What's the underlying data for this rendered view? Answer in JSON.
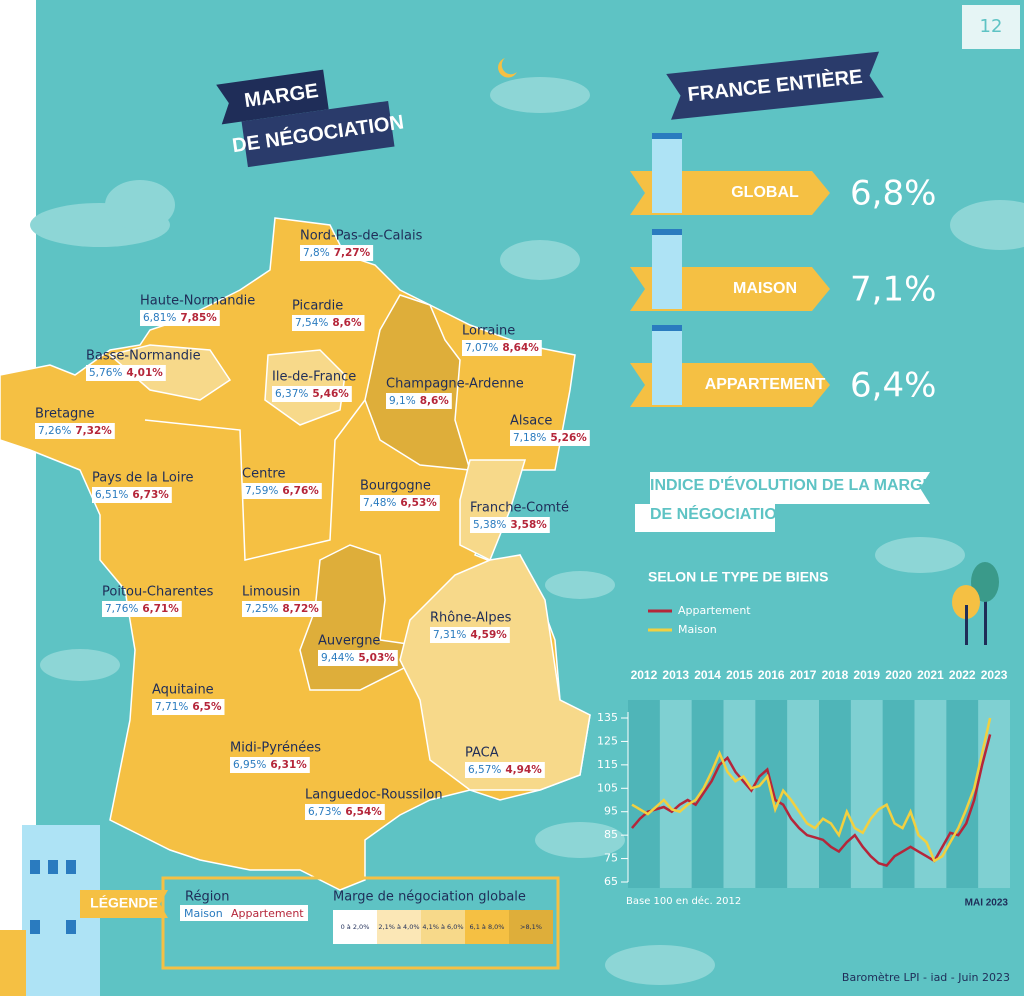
{
  "page_number": "12",
  "map_title": [
    "MARGE",
    "DE NÉGOCIATION"
  ],
  "regions": [
    {
      "name": "Nord-Pas-de-Calais",
      "maison": "7,8%",
      "appartement": "7,27%"
    },
    {
      "name": "Haute-Normandie",
      "maison": "6,81%",
      "appartement": "7,85%"
    },
    {
      "name": "Picardie",
      "maison": "7,54%",
      "appartement": "8,6%"
    },
    {
      "name": "Lorraine",
      "maison": "7,07%",
      "appartement": "8,64%"
    },
    {
      "name": "Basse-Normandie",
      "maison": "5,76%",
      "appartement": "4,01%"
    },
    {
      "name": "Ile-de-France",
      "maison": "6,37%",
      "appartement": "5,46%"
    },
    {
      "name": "Champagne-Ardenne",
      "maison": "9,1%",
      "appartement": "8,6%"
    },
    {
      "name": "Bretagne",
      "maison": "7,26%",
      "appartement": "7,32%"
    },
    {
      "name": "Alsace",
      "maison": "7,18%",
      "appartement": "5,26%"
    },
    {
      "name": "Pays de la Loire",
      "maison": "6,51%",
      "appartement": "6,73%"
    },
    {
      "name": "Centre",
      "maison": "7,59%",
      "appartement": "6,76%"
    },
    {
      "name": "Bourgogne",
      "maison": "7,48%",
      "appartement": "6,53%"
    },
    {
      "name": "Franche-Comté",
      "maison": "5,38%",
      "appartement": "3,58%"
    },
    {
      "name": "Poitou-Charentes",
      "maison": "7,76%",
      "appartement": "6,71%"
    },
    {
      "name": "Limousin",
      "maison": "7,25%",
      "appartement": "8,72%"
    },
    {
      "name": "Rhône-Alpes",
      "maison": "7,31%",
      "appartement": "4,59%"
    },
    {
      "name": "Auvergne",
      "maison": "9,44%",
      "appartement": "5,03%"
    },
    {
      "name": "Aquitaine",
      "maison": "7,71%",
      "appartement": "6,5%"
    },
    {
      "name": "Midi-Pyrénées",
      "maison": "6,95%",
      "appartement": "6,31%"
    },
    {
      "name": "PACA",
      "maison": "6,57%",
      "appartement": "4,94%"
    },
    {
      "name": "Languedoc-Roussilon",
      "maison": "6,73%",
      "appartement": "6,54%"
    }
  ],
  "legend": {
    "title": "LÉGENDE",
    "region": "Région",
    "maison": "Maison",
    "appartement": "Appartement",
    "scale_title": "Marge de négociation globale",
    "bins": [
      "0 à 2,0%",
      "2,1% à 4,0%",
      "4,1% à 6,0%",
      "6,1 à 8,0%",
      ">8,1%"
    ]
  },
  "france": {
    "title": "FRANCE ENTIÈRE",
    "rows": [
      {
        "label": "GLOBAL",
        "value": "6,8%"
      },
      {
        "label": "MAISON",
        "value": "7,1%"
      },
      {
        "label": "APPARTEMENT",
        "value": "6,4%"
      }
    ]
  },
  "chart_data": {
    "type": "line",
    "title": [
      "INDICE D'ÉVOLUTION DE LA MARGE",
      "DE NÉGOCIATION"
    ],
    "subtitle": "SELON LE TYPE DE BIENS",
    "categories": [
      "2012",
      null,
      null,
      null,
      "2013",
      null,
      null,
      null,
      "2014",
      null,
      null,
      null,
      "2015",
      null,
      null,
      null,
      "2016",
      null,
      null,
      null,
      "2017",
      null,
      null,
      null,
      "2018",
      null,
      null,
      null,
      "2019",
      null,
      null,
      null,
      "2020",
      null,
      null,
      null,
      "2021",
      null,
      null,
      null,
      "2022",
      null,
      null,
      null,
      "2023",
      null
    ],
    "series": [
      {
        "name": "Appartement",
        "color": "#b5263a",
        "values": [
          88,
          92,
          95,
          96,
          97,
          95,
          98,
          100,
          98,
          103,
          108,
          115,
          118,
          112,
          108,
          104,
          110,
          113,
          100,
          98,
          92,
          88,
          85,
          84,
          83,
          80,
          78,
          82,
          85,
          80,
          76,
          73,
          72,
          76,
          78,
          80,
          78,
          76,
          74,
          80,
          86,
          85,
          90,
          100,
          115,
          128
        ]
      },
      {
        "name": "Maison",
        "color": "#f2d040",
        "values": [
          98,
          96,
          94,
          97,
          100,
          96,
          95,
          98,
          100,
          105,
          112,
          120,
          112,
          108,
          110,
          105,
          106,
          110,
          96,
          104,
          100,
          95,
          90,
          88,
          92,
          90,
          85,
          95,
          88,
          86,
          92,
          96,
          98,
          90,
          88,
          95,
          85,
          82,
          74,
          76,
          82,
          88,
          96,
          105,
          120,
          135
        ]
      }
    ],
    "ylim": [
      65,
      135
    ],
    "yticks": [
      65,
      75,
      85,
      95,
      105,
      115,
      125,
      135
    ],
    "note": "Base 100 en déc. 2012",
    "end_label": "MAI 2023"
  },
  "source": "Baromètre LPI - iad - Juin 2023"
}
